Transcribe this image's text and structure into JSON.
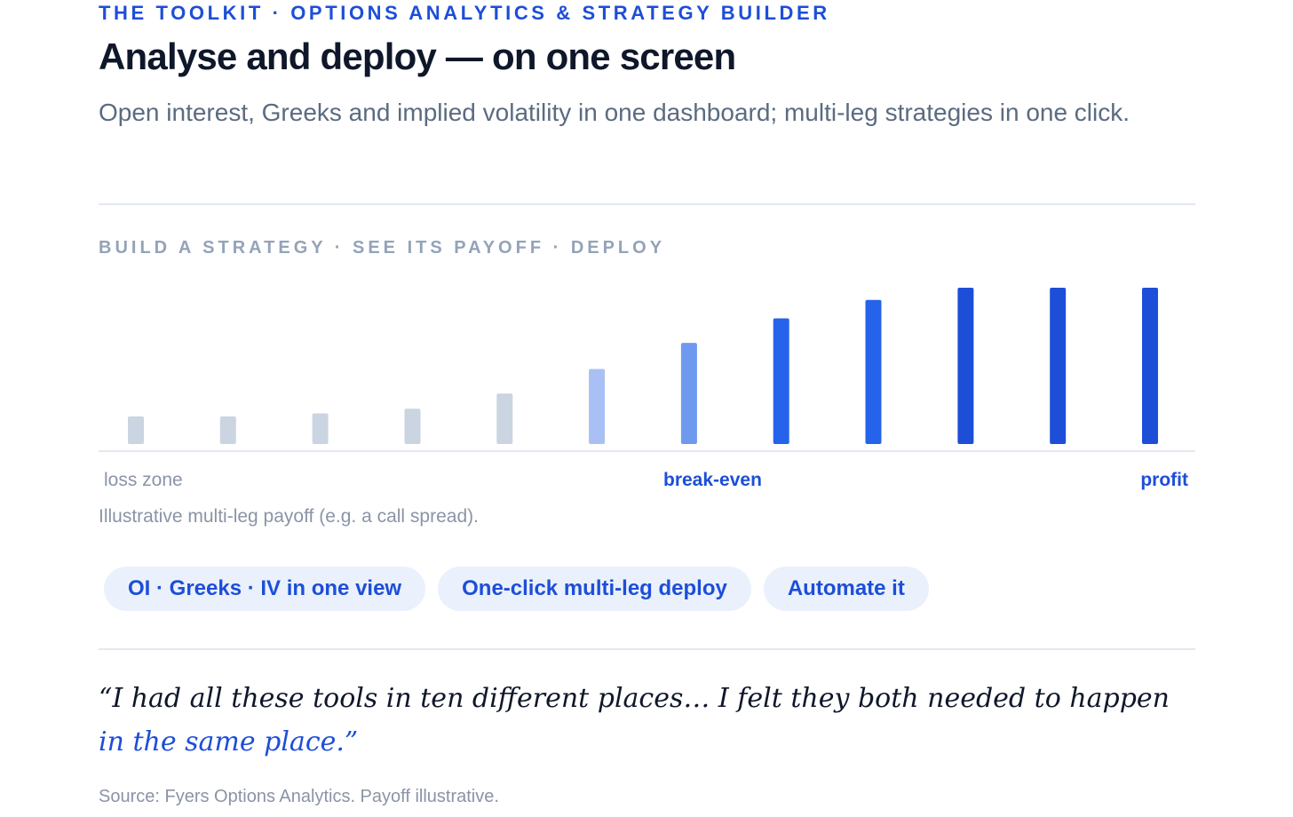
{
  "header": {
    "kicker": "THE TOOLKIT · OPTIONS ANALYTICS & STRATEGY BUILDER",
    "headline": "Analyse and deploy — on one screen",
    "subhead": "Open interest, Greeks and implied volatility in one dashboard; multi-leg strategies in one click."
  },
  "section": {
    "label": "BUILD A STRATEGY · SEE ITS PAYOFF · DEPLOY"
  },
  "chart_data": {
    "type": "bar",
    "values": [
      18,
      18,
      20,
      23,
      33,
      49,
      66,
      82,
      94,
      102,
      102,
      102
    ],
    "colors": [
      "#cbd5e1",
      "#cbd5e1",
      "#cbd5e1",
      "#cbd5e1",
      "#cbd5e1",
      "#a9c0f4",
      "#6d9aef",
      "#2563eb",
      "#2563eb",
      "#1d4ed8",
      "#1d4ed8",
      "#1d4ed8"
    ],
    "ylim": [
      0,
      102
    ],
    "grid": false,
    "zone_labels": {
      "loss": "loss zone",
      "breakeven": "break-even",
      "profit": "profit"
    }
  },
  "caption": "Illustrative multi-leg payoff (e.g. a call spread).",
  "pills": [
    {
      "label": "OI · Greeks · IV in one view"
    },
    {
      "label": "One-click multi-leg deploy"
    },
    {
      "label": "Automate it"
    }
  ],
  "quote": {
    "text": "“I had all these tools in ten different places… I felt they both needed to happen ",
    "highlight": "in the same place.”"
  },
  "source": "Source: Fyers Options Analytics. Payoff illustrative.",
  "colors": {
    "accent": "#1d4ed8",
    "pill_background": "#eaf1fd",
    "muted_text": "#8a94a6",
    "rule": "#e2e8f0"
  }
}
